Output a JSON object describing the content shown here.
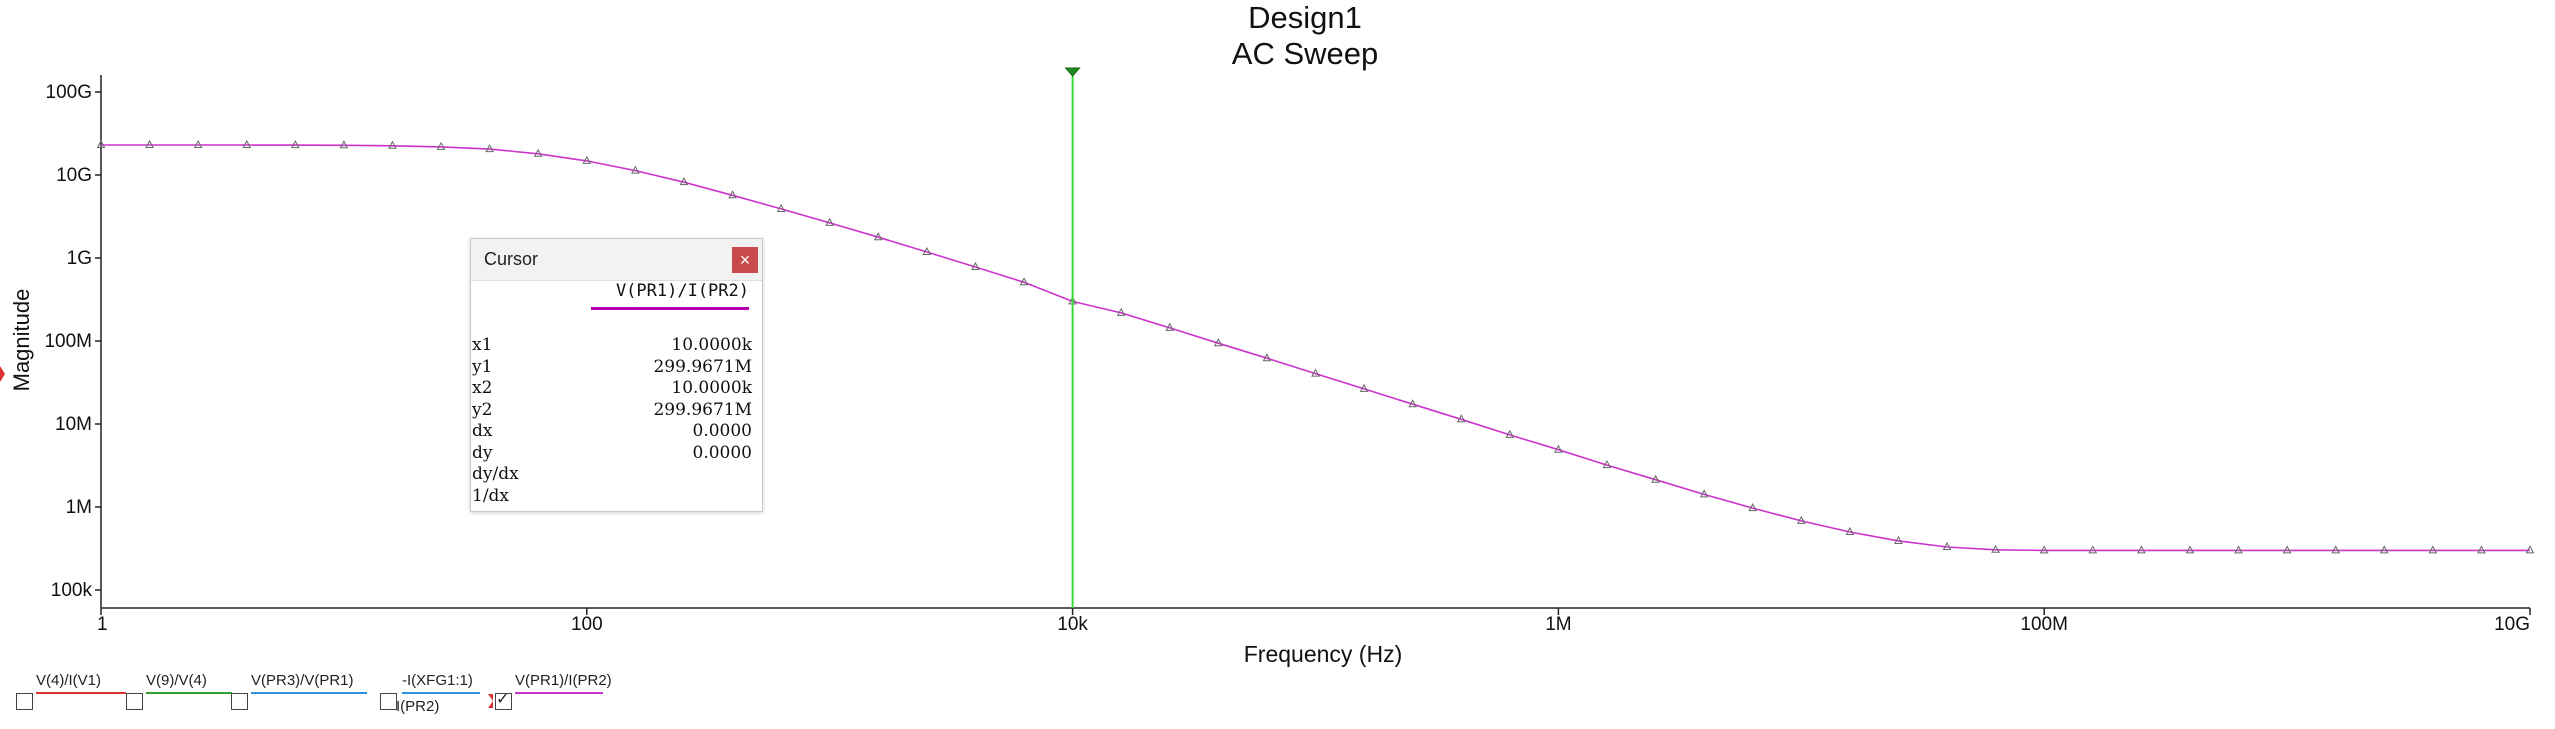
{
  "chart_data": {
    "type": "line",
    "title": "Design1",
    "subtitle": "AC Sweep",
    "xlabel": "Frequency (Hz)",
    "ylabel": "Magnitude",
    "x_scale": "log",
    "y_scale": "log",
    "xlim": [
      1,
      10000000000
    ],
    "ylim": [
      100000,
      100000000000
    ],
    "x_ticks": [
      {
        "value": 1,
        "label": "1"
      },
      {
        "value": 100,
        "label": "100"
      },
      {
        "value": 10000,
        "label": "10k"
      },
      {
        "value": 1000000,
        "label": "1M"
      },
      {
        "value": 100000000,
        "label": "100M"
      },
      {
        "value": 10000000000,
        "label": "10G"
      }
    ],
    "y_ticks": [
      {
        "value": 100000,
        "label": "100k"
      },
      {
        "value": 1000000,
        "label": "1M"
      },
      {
        "value": 10000000,
        "label": "10M"
      },
      {
        "value": 100000000,
        "label": "100M"
      },
      {
        "value": 1000000000,
        "label": "1G"
      },
      {
        "value": 10000000000,
        "label": "10G"
      },
      {
        "value": 100000000000,
        "label": "100G"
      }
    ],
    "series": [
      {
        "name": "V(PR1)/I(PR2)",
        "color": "#cc33cc",
        "marker": "triangle",
        "x": [
          1,
          1.585,
          2.512,
          3.981,
          6.31,
          10,
          15.85,
          25.12,
          39.81,
          63.1,
          100,
          158.5,
          251.2,
          398.1,
          631,
          1000,
          1585,
          2512,
          3981,
          6310,
          10000,
          15850,
          25120,
          39810,
          63100,
          100000,
          158500,
          251200,
          398100,
          631000,
          1000000,
          1585000,
          2512000,
          3981000,
          6310000,
          10000000,
          15850000,
          25120000,
          39810000,
          63100000,
          100000000,
          158500000,
          251200000,
          398100000,
          631000000,
          1000000000,
          1585000000,
          2512000000,
          3981000000,
          6310000000,
          10000000000
        ],
        "y": [
          23000000000,
          23000000000,
          23000000000,
          22980000000,
          22900000000,
          22800000000,
          22500000000,
          21800000000,
          20500000000,
          18000000000,
          14800000000,
          11300000000,
          8200000000,
          5700000000,
          3900000000,
          2650000000,
          1780000000,
          1180000000,
          780000000,
          510000000,
          299967100,
          218000000,
          144000000,
          94000000,
          62000000,
          40500000,
          26500000,
          17300000,
          11400000,
          7400000,
          4900000,
          3200000,
          2130000,
          1420000,
          970000,
          680000,
          500000,
          390000,
          330000,
          305000,
          300000,
          300000,
          300000,
          300000,
          300000,
          300000,
          300000,
          300000,
          300000,
          300000,
          300000
        ]
      }
    ],
    "cursor": {
      "x": 10000,
      "color": "#33dd33"
    },
    "grid": false,
    "legend_position": "bottom-left"
  },
  "cursor_window": {
    "title": "Cursor",
    "close_label": "×",
    "column_header": "V(PR1)/I(PR2)",
    "rows": [
      {
        "label": "x1",
        "value": "10.0000k"
      },
      {
        "label": "y1",
        "value": "299.9671M"
      },
      {
        "label": "x2",
        "value": "10.0000k"
      },
      {
        "label": "y2",
        "value": "299.9671M"
      },
      {
        "label": "dx",
        "value": "0.0000"
      },
      {
        "label": "dy",
        "value": "0.0000"
      },
      {
        "label": "dy/dx",
        "value": ""
      },
      {
        "label": "1/dx",
        "value": ""
      }
    ]
  },
  "legend": [
    {
      "label": "V(4)/I(V1)",
      "label2": "",
      "color": "#e03030",
      "checked": false
    },
    {
      "label": "V(9)/V(4)",
      "label2": "",
      "color": "#30a030",
      "checked": false
    },
    {
      "label": "V(PR3)/V(PR1)",
      "label2": "",
      "color": "#3090e0",
      "checked": false
    },
    {
      "label": "-I(XFG1:1)",
      "label2": "I(PR2)",
      "color": "#3090e0",
      "checked": false
    },
    {
      "label": "V(PR1)/I(PR2)",
      "label2": "",
      "color": "#cc33cc",
      "checked": true
    }
  ]
}
